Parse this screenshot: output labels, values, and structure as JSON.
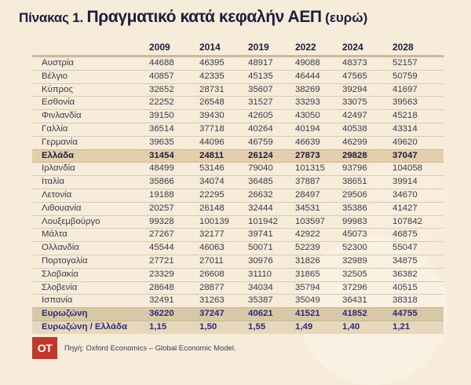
{
  "title": {
    "prefix": "Πίνακας 1.",
    "main": "Πραγματικό κατά κεφαλήν ΑΕΠ",
    "unit": "(ευρώ)"
  },
  "table": {
    "years": [
      "2009",
      "2014",
      "2019",
      "2022",
      "2024",
      "2028"
    ],
    "rows": [
      {
        "name": "Αυστρία",
        "values": [
          "44688",
          "46395",
          "48917",
          "49088",
          "48373",
          "52157"
        ]
      },
      {
        "name": "Βέλγιο",
        "values": [
          "40857",
          "42335",
          "45135",
          "46444",
          "47565",
          "50759"
        ]
      },
      {
        "name": "Κύπρος",
        "values": [
          "32652",
          "28731",
          "35607",
          "38269",
          "39294",
          "41697"
        ]
      },
      {
        "name": "Εσθονία",
        "values": [
          "22252",
          "26548",
          "31527",
          "33293",
          "33075",
          "39563"
        ]
      },
      {
        "name": "Φινλανδία",
        "values": [
          "39150",
          "39430",
          "42605",
          "43050",
          "42497",
          "45218"
        ]
      },
      {
        "name": "Γαλλία",
        "values": [
          "36514",
          "37718",
          "40264",
          "40194",
          "40538",
          "43314"
        ]
      },
      {
        "name": "Γερμανία",
        "values": [
          "39635",
          "44096",
          "46759",
          "46639",
          "46299",
          "49620"
        ]
      },
      {
        "name": "Ελλάδα",
        "values": [
          "31454",
          "24811",
          "26124",
          "27873",
          "29828",
          "37047"
        ]
      },
      {
        "name": "Ιρλανδία",
        "values": [
          "48499",
          "53146",
          "79040",
          "101315",
          "93796",
          "104058"
        ]
      },
      {
        "name": "Ιταλία",
        "values": [
          "35866",
          "34074",
          "36485",
          "37887",
          "38651",
          "39914"
        ]
      },
      {
        "name": "Λετονία",
        "values": [
          "19188",
          "22295",
          "26632",
          "28497",
          "29506",
          "34670"
        ]
      },
      {
        "name": "Λιθουανία",
        "values": [
          "20257",
          "26148",
          "32444",
          "34531",
          "35386",
          "41427"
        ]
      },
      {
        "name": "Λουξεμβούργο",
        "values": [
          "99328",
          "100139",
          "101942",
          "103597",
          "99983",
          "107842"
        ]
      },
      {
        "name": "Μάλτα",
        "values": [
          "27267",
          "32177",
          "39741",
          "42922",
          "45073",
          "46875"
        ]
      },
      {
        "name": "Ολλανδία",
        "values": [
          "45544",
          "46063",
          "50071",
          "52239",
          "52300",
          "55047"
        ]
      },
      {
        "name": "Πορτογαλία",
        "values": [
          "27721",
          "27011",
          "30976",
          "31826",
          "32989",
          "34875"
        ]
      },
      {
        "name": "Σλοβακία",
        "values": [
          "23329",
          "26608",
          "31110",
          "31865",
          "32505",
          "36382"
        ]
      },
      {
        "name": "Σλοβενία",
        "values": [
          "28648",
          "28877",
          "34034",
          "35794",
          "37296",
          "40515"
        ]
      },
      {
        "name": "Ισπανία",
        "values": [
          "32491",
          "31263",
          "35387",
          "35049",
          "36431",
          "38318"
        ]
      }
    ],
    "eurozone": {
      "name": "Ευρωζώνη",
      "values": [
        "36220",
        "37247",
        "40621",
        "41521",
        "41852",
        "44755"
      ]
    },
    "ratio": {
      "name": "Ευρωζώνη / Ελλάδα",
      "values": [
        "1,15",
        "1,50",
        "1,55",
        "1,49",
        "1,40",
        "1,21"
      ]
    }
  },
  "footer": {
    "logo": "OT",
    "source": "Πηγή: Oxford Economics – Global Economic Model."
  },
  "colors": {
    "background": "#f7ebd9",
    "greece_row": "#e3cfad",
    "eurozone_text": "#2c2d75",
    "logo": "#c0392b"
  }
}
